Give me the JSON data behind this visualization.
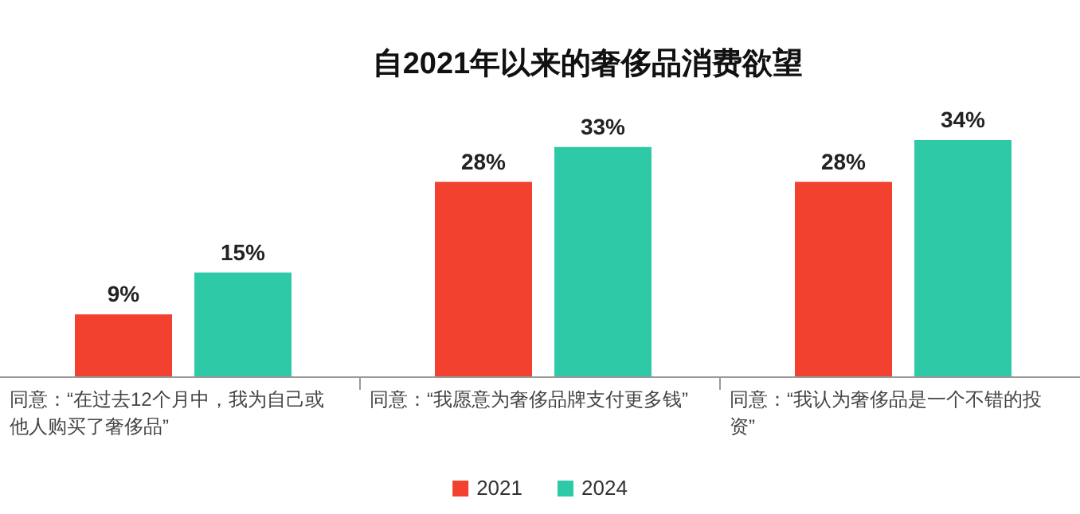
{
  "chart_data": {
    "type": "bar",
    "title": "自2021年以来的奢侈品消费欲望",
    "categories": [
      "同意：“在过去12个月中，我为自己或他人购买了奢侈品”",
      "同意：“我愿意为奢侈品牌支付更多钱”",
      "同意：“我认为奢侈品是一个不错的投资”"
    ],
    "series": [
      {
        "name": "2021",
        "color": "#f2412e",
        "values": [
          9,
          28,
          28
        ],
        "value_labels": [
          "9%",
          "28%",
          "28%"
        ]
      },
      {
        "name": "2024",
        "color": "#2ec9a6",
        "values": [
          15,
          33,
          34
        ],
        "value_labels": [
          "15%",
          "33%",
          "34%"
        ]
      }
    ],
    "legend": "bottom"
  }
}
